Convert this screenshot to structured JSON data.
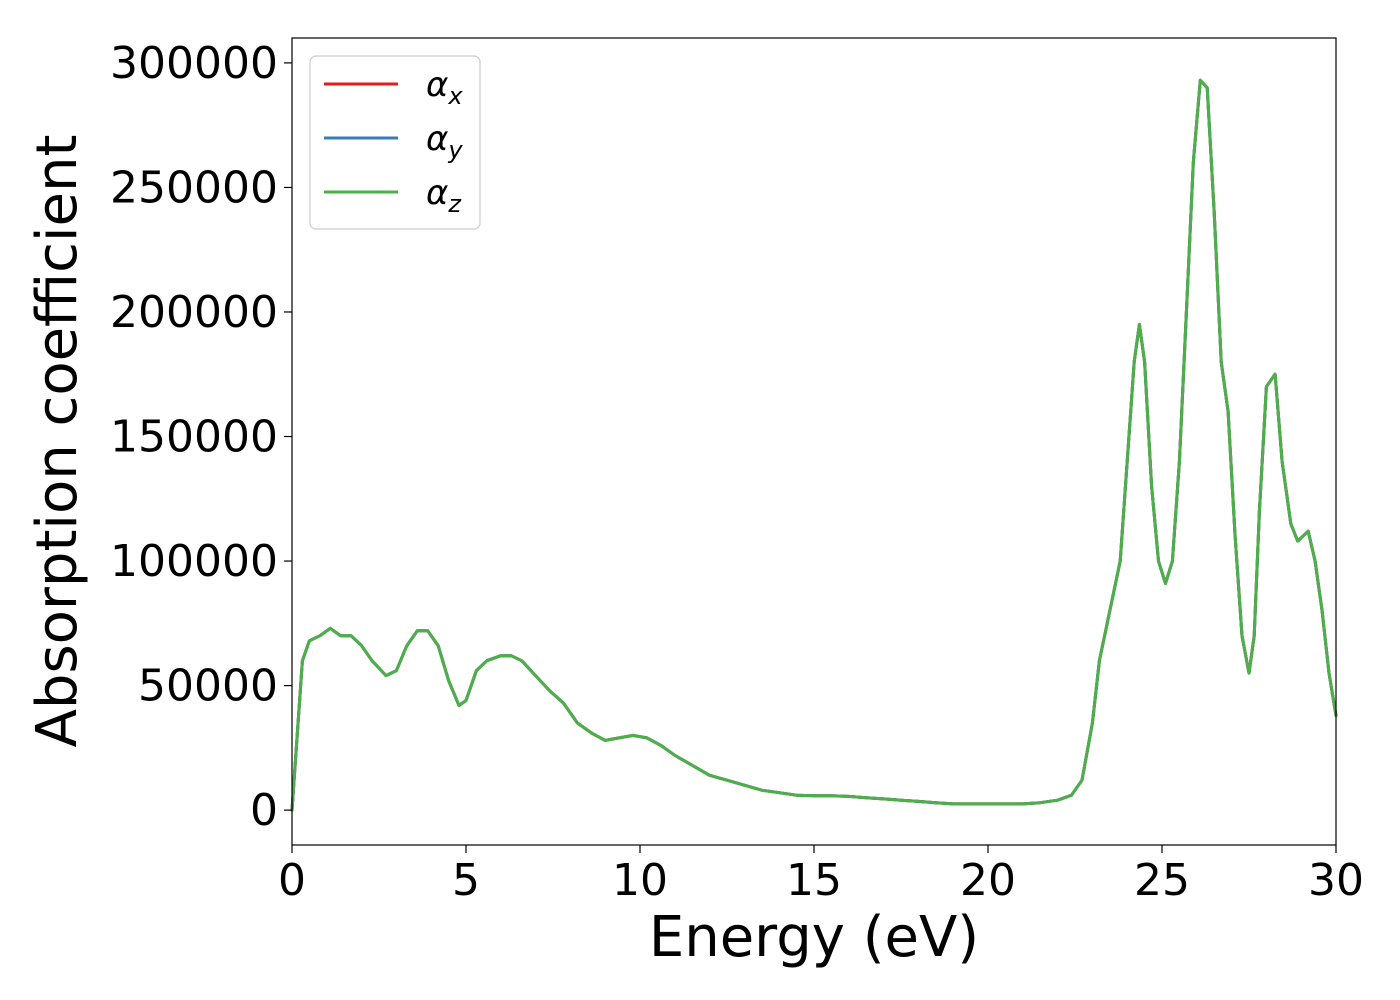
{
  "chart_data": {
    "type": "line",
    "title": "",
    "xlabel": "Energy (eV)",
    "ylabel": "Absorption coefficient",
    "xlim": [
      0,
      30
    ],
    "ylim": [
      -14000,
      310000
    ],
    "xticks": [
      0,
      5,
      10,
      15,
      20,
      25,
      30
    ],
    "xtick_labels": [
      "0",
      "5",
      "10",
      "15",
      "20",
      "25",
      "30"
    ],
    "yticks": [
      0,
      50000,
      100000,
      150000,
      200000,
      250000,
      300000
    ],
    "ytick_labels": [
      "0",
      "50000",
      "100000",
      "150000",
      "200000",
      "250000",
      "300000"
    ],
    "grid": false,
    "legend_position": "top-left",
    "series": [
      {
        "name": "αx",
        "symbol": "α",
        "subscript": "x",
        "color": "#e41a1c",
        "x": [
          0,
          0.15,
          0.3,
          0.5,
          0.8,
          1.1,
          1.4,
          1.7,
          2.0,
          2.3,
          2.7,
          3.0,
          3.3,
          3.6,
          3.9,
          4.2,
          4.5,
          4.8,
          5.0,
          5.3,
          5.6,
          6.0,
          6.3,
          6.6,
          7.0,
          7.4,
          7.8,
          8.2,
          8.6,
          9.0,
          9.4,
          9.8,
          10.2,
          10.6,
          11.0,
          11.5,
          12.0,
          12.5,
          13.0,
          13.5,
          14.0,
          14.5,
          15.0,
          15.5,
          16.0,
          16.5,
          17.0,
          17.5,
          18.0,
          18.5,
          19.0,
          19.5,
          20.0,
          20.5,
          21.0,
          21.5,
          22.0,
          22.4,
          22.7,
          23.0,
          23.2,
          23.5,
          23.8,
          24.0,
          24.2,
          24.35,
          24.5,
          24.7,
          24.9,
          25.1,
          25.3,
          25.5,
          25.7,
          25.9,
          26.1,
          26.3,
          26.5,
          26.7,
          26.9,
          27.1,
          27.3,
          27.5,
          27.65,
          27.8,
          28.0,
          28.25,
          28.45,
          28.7,
          28.9,
          29.2,
          29.4,
          29.6,
          29.8,
          30.0
        ],
        "values": [
          0,
          30000,
          60000,
          68000,
          70000,
          73000,
          70000,
          70000,
          66000,
          60000,
          54000,
          56000,
          66000,
          72000,
          72000,
          66000,
          52000,
          42000,
          44000,
          56000,
          60000,
          62000,
          62000,
          60000,
          54000,
          48000,
          43000,
          35000,
          31000,
          28000,
          29000,
          30000,
          29000,
          26000,
          22000,
          18000,
          14000,
          12000,
          10000,
          8000,
          7000,
          6000,
          5800,
          5800,
          5500,
          5000,
          4500,
          4000,
          3500,
          3000,
          2500,
          2500,
          2500,
          2500,
          2500,
          3000,
          4000,
          6000,
          12000,
          35000,
          60000,
          80000,
          100000,
          140000,
          180000,
          195000,
          180000,
          130000,
          100000,
          91000,
          100000,
          140000,
          200000,
          260000,
          293000,
          290000,
          240000,
          180000,
          160000,
          110000,
          70000,
          55000,
          70000,
          120000,
          170000,
          175000,
          140000,
          115000,
          108000,
          112000,
          100000,
          80000,
          55000,
          38000
        ]
      },
      {
        "name": "αy",
        "symbol": "α",
        "subscript": "y",
        "color": "#377eb8",
        "x": [
          0,
          0.15,
          0.3,
          0.5,
          0.8,
          1.1,
          1.4,
          1.7,
          2.0,
          2.3,
          2.7,
          3.0,
          3.3,
          3.6,
          3.9,
          4.2,
          4.5,
          4.8,
          5.0,
          5.3,
          5.6,
          6.0,
          6.3,
          6.6,
          7.0,
          7.4,
          7.8,
          8.2,
          8.6,
          9.0,
          9.4,
          9.8,
          10.2,
          10.6,
          11.0,
          11.5,
          12.0,
          12.5,
          13.0,
          13.5,
          14.0,
          14.5,
          15.0,
          15.5,
          16.0,
          16.5,
          17.0,
          17.5,
          18.0,
          18.5,
          19.0,
          19.5,
          20.0,
          20.5,
          21.0,
          21.5,
          22.0,
          22.4,
          22.7,
          23.0,
          23.2,
          23.5,
          23.8,
          24.0,
          24.2,
          24.35,
          24.5,
          24.7,
          24.9,
          25.1,
          25.3,
          25.5,
          25.7,
          25.9,
          26.1,
          26.3,
          26.5,
          26.7,
          26.9,
          27.1,
          27.3,
          27.5,
          27.65,
          27.8,
          28.0,
          28.25,
          28.45,
          28.7,
          28.9,
          29.2,
          29.4,
          29.6,
          29.8,
          30.0
        ],
        "values": [
          0,
          30000,
          60000,
          68000,
          70000,
          73000,
          70000,
          70000,
          66000,
          60000,
          54000,
          56000,
          66000,
          72000,
          72000,
          66000,
          52000,
          42000,
          44000,
          56000,
          60000,
          62000,
          62000,
          60000,
          54000,
          48000,
          43000,
          35000,
          31000,
          28000,
          29000,
          30000,
          29000,
          26000,
          22000,
          18000,
          14000,
          12000,
          10000,
          8000,
          7000,
          6000,
          5800,
          5800,
          5500,
          5000,
          4500,
          4000,
          3500,
          3000,
          2500,
          2500,
          2500,
          2500,
          2500,
          3000,
          4000,
          6000,
          12000,
          35000,
          60000,
          80000,
          100000,
          140000,
          180000,
          195000,
          180000,
          130000,
          100000,
          91000,
          100000,
          140000,
          200000,
          260000,
          293000,
          290000,
          240000,
          180000,
          160000,
          110000,
          70000,
          55000,
          70000,
          120000,
          170000,
          175000,
          140000,
          115000,
          108000,
          112000,
          100000,
          80000,
          55000,
          38000
        ]
      },
      {
        "name": "αz",
        "symbol": "α",
        "subscript": "z",
        "color": "#4daf4a",
        "x": [
          0,
          0.15,
          0.3,
          0.5,
          0.8,
          1.1,
          1.4,
          1.7,
          2.0,
          2.3,
          2.7,
          3.0,
          3.3,
          3.6,
          3.9,
          4.2,
          4.5,
          4.8,
          5.0,
          5.3,
          5.6,
          6.0,
          6.3,
          6.6,
          7.0,
          7.4,
          7.8,
          8.2,
          8.6,
          9.0,
          9.4,
          9.8,
          10.2,
          10.6,
          11.0,
          11.5,
          12.0,
          12.5,
          13.0,
          13.5,
          14.0,
          14.5,
          15.0,
          15.5,
          16.0,
          16.5,
          17.0,
          17.5,
          18.0,
          18.5,
          19.0,
          19.5,
          20.0,
          20.5,
          21.0,
          21.5,
          22.0,
          22.4,
          22.7,
          23.0,
          23.2,
          23.5,
          23.8,
          24.0,
          24.2,
          24.35,
          24.5,
          24.7,
          24.9,
          25.1,
          25.3,
          25.5,
          25.7,
          25.9,
          26.1,
          26.3,
          26.5,
          26.7,
          26.9,
          27.1,
          27.3,
          27.5,
          27.65,
          27.8,
          28.0,
          28.25,
          28.45,
          28.7,
          28.9,
          29.2,
          29.4,
          29.6,
          29.8,
          30.0
        ],
        "values": [
          0,
          30000,
          60000,
          68000,
          70000,
          73000,
          70000,
          70000,
          66000,
          60000,
          54000,
          56000,
          66000,
          72000,
          72000,
          66000,
          52000,
          42000,
          44000,
          56000,
          60000,
          62000,
          62000,
          60000,
          54000,
          48000,
          43000,
          35000,
          31000,
          28000,
          29000,
          30000,
          29000,
          26000,
          22000,
          18000,
          14000,
          12000,
          10000,
          8000,
          7000,
          6000,
          5800,
          5800,
          5500,
          5000,
          4500,
          4000,
          3500,
          3000,
          2500,
          2500,
          2500,
          2500,
          2500,
          3000,
          4000,
          6000,
          12000,
          35000,
          60000,
          80000,
          100000,
          140000,
          180000,
          195000,
          180000,
          130000,
          100000,
          91000,
          100000,
          140000,
          200000,
          260000,
          293000,
          290000,
          240000,
          180000,
          160000,
          110000,
          70000,
          55000,
          70000,
          120000,
          170000,
          175000,
          140000,
          115000,
          108000,
          112000,
          100000,
          80000,
          55000,
          38000
        ]
      }
    ]
  }
}
